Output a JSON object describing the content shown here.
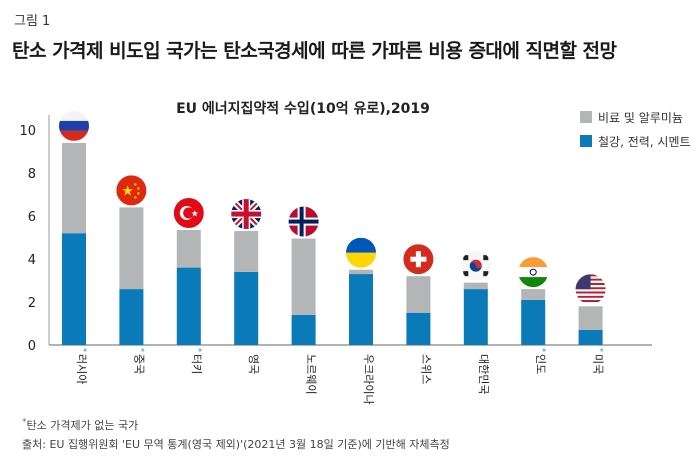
{
  "figure_label": "그림 1",
  "headline": "탄소 가격제 비도입 국가는 탄소국경세에 따른 가파른 비용 증대에 직면할 전망",
  "footnote_marker": "*",
  "footnote": "탄소 가격제가 없는 국가",
  "source": "출처: EU 집행위원회 'EU 무역 통계(영국 제외)'(2021년 3월 18일 기준)에 기반해 자체측정",
  "chart_data": {
    "type": "bar",
    "stacked": true,
    "title": "EU 에너지집약적 수입(10억 유로),2019",
    "xlabel": "",
    "ylabel": "",
    "ylim": [
      0,
      10
    ],
    "yticks": [
      0,
      2,
      4,
      6,
      8,
      10
    ],
    "grid": false,
    "legend_position": "top-right",
    "categories": [
      "러시아",
      "중국",
      "터키",
      "영국",
      "노르웨이",
      "우크라이나",
      "스위스",
      "대한민국",
      "인도",
      "미국"
    ],
    "no_carbon_pricing": [
      true,
      true,
      true,
      false,
      false,
      false,
      false,
      false,
      true,
      true
    ],
    "flags": [
      "russia-flag",
      "china-flag",
      "turkey-flag",
      "uk-flag",
      "norway-flag",
      "ukraine-flag",
      "switzerland-flag",
      "korea-flag",
      "india-flag",
      "usa-flag"
    ],
    "series": [
      {
        "name": "철강, 전력, 시멘트",
        "color": "#0a7ab8",
        "values": [
          5.2,
          2.6,
          3.6,
          3.4,
          1.4,
          3.3,
          1.5,
          2.6,
          2.1,
          0.7
        ]
      },
      {
        "name": "비료 및 알루미늄",
        "color": "#b3b5b7",
        "values": [
          4.2,
          3.8,
          1.75,
          1.9,
          3.55,
          0.2,
          1.7,
          0.3,
          0.5,
          1.1
        ]
      }
    ]
  }
}
